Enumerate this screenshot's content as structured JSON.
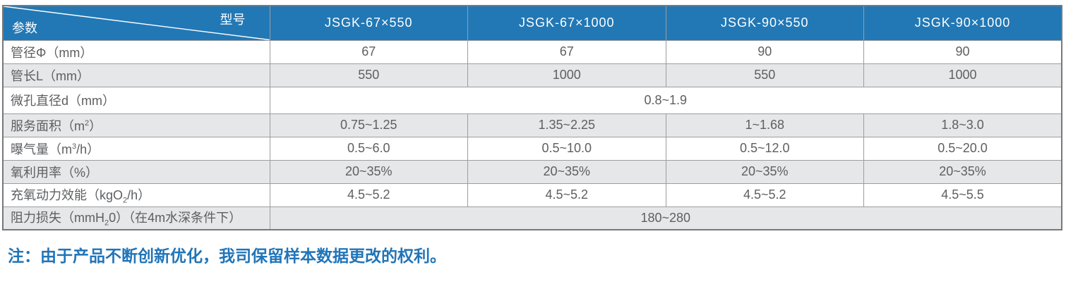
{
  "table": {
    "corner": {
      "top_right": "型号",
      "bottom_left": "参数"
    },
    "columns": [
      "JSGK-67×550",
      "JSGK-67×1000",
      "JSGK-90×550",
      "JSGK-90×1000"
    ],
    "rows": [
      {
        "label": [
          {
            "t": "管径Φ（mm）"
          }
        ],
        "values": [
          "67",
          "67",
          "90",
          "90"
        ],
        "shade": false
      },
      {
        "label": [
          {
            "t": "管长L（mm）"
          }
        ],
        "values": [
          "550",
          "1000",
          "550",
          "1000"
        ],
        "shade": true
      },
      {
        "label": [
          {
            "t": "微孔直径d（mm）"
          }
        ],
        "merged": "0.8~1.9",
        "shade": false
      },
      {
        "label": [
          {
            "t": "服务面积（m"
          },
          {
            "sup": "2"
          },
          {
            "t": "）"
          }
        ],
        "values": [
          "0.75~1.25",
          "1.35~2.25",
          "1~1.68",
          "1.8~3.0"
        ],
        "shade": true
      },
      {
        "label": [
          {
            "t": "曝气量（m"
          },
          {
            "sup": "3"
          },
          {
            "t": "/h）"
          }
        ],
        "values": [
          "0.5~6.0",
          "0.5~10.0",
          "0.5~12.0",
          "0.5~20.0"
        ],
        "shade": false
      },
      {
        "label": [
          {
            "t": "氧利用率（%）"
          }
        ],
        "values": [
          "20~35%",
          "20~35%",
          "20~35%",
          "20~35%"
        ],
        "shade": true
      },
      {
        "label": [
          {
            "t": "充氧动力效能（kgO"
          },
          {
            "sub": "2"
          },
          {
            "t": "/h）"
          }
        ],
        "values": [
          "4.5~5.2",
          "4.5~5.2",
          "4.5~5.2",
          "4.5~5.5"
        ],
        "shade": false
      },
      {
        "label": [
          {
            "t": "阻力损失（mmH"
          },
          {
            "sub": "2"
          },
          {
            "t": "0）（在4m水深条件下）"
          }
        ],
        "merged": "180~280",
        "shade": true
      }
    ]
  },
  "note": "注：由于产品不断创新优化，我司保留样本数据更改的权利。",
  "colors": {
    "header_bg": "#2278b5",
    "header_text": "#fbfdfe",
    "row_alt_bg": "#e6e7e8",
    "border_inner": "#9b9da0",
    "border_outer": "#77787b",
    "cell_text": "#5e5f61",
    "note_color": "#2175b8"
  }
}
